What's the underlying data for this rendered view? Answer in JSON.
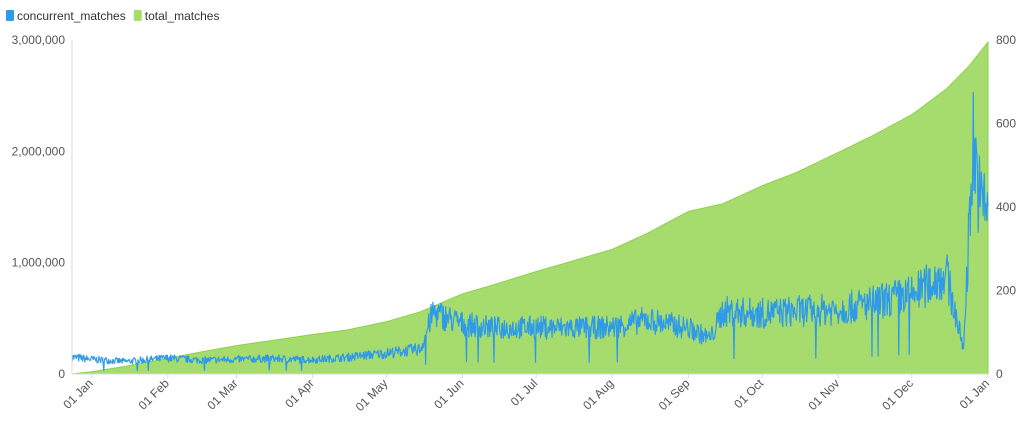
{
  "chart_data": {
    "type": "area+line",
    "title": "",
    "legend": {
      "position": "top-left",
      "entries": [
        {
          "name": "concurrent_matches",
          "color": "#2f9be8",
          "icon": "square-swatch-icon"
        },
        {
          "name": "total_matches",
          "color": "#a6dc6e",
          "icon": "square-swatch-icon"
        }
      ]
    },
    "x_axis": {
      "type": "date",
      "range": [
        "2022-12-24",
        "2024-01-01"
      ],
      "ticks": [
        {
          "label": "01 Jan",
          "date": "2023-01-01"
        },
        {
          "label": "01 Feb",
          "date": "2023-02-01"
        },
        {
          "label": "01 Mar",
          "date": "2023-03-01"
        },
        {
          "label": "01 Apr",
          "date": "2023-04-01"
        },
        {
          "label": "01 May",
          "date": "2023-05-01"
        },
        {
          "label": "01 Jun",
          "date": "2023-06-01"
        },
        {
          "label": "01 Jul",
          "date": "2023-07-01"
        },
        {
          "label": "01 Aug",
          "date": "2023-08-01"
        },
        {
          "label": "01 Sep",
          "date": "2023-09-01"
        },
        {
          "label": "01 Oct",
          "date": "2023-10-01"
        },
        {
          "label": "01 Nov",
          "date": "2023-11-01"
        },
        {
          "label": "01 Dec",
          "date": "2023-12-01"
        },
        {
          "label": "01 Jan",
          "date": "2024-01-01"
        }
      ]
    },
    "y_left": {
      "series": "total_matches",
      "range": [
        0,
        3000000
      ],
      "ticks": [
        {
          "label": "0",
          "value": 0
        },
        {
          "label": "1,000,000",
          "value": 1000000
        },
        {
          "label": "2,000,000",
          "value": 2000000
        },
        {
          "label": "3,000,000",
          "value": 3000000
        }
      ]
    },
    "y_right": {
      "series": "concurrent_matches",
      "range": [
        0,
        800
      ],
      "ticks": [
        {
          "label": "0",
          "value": 0
        },
        {
          "label": "200",
          "value": 200
        },
        {
          "label": "400",
          "value": 400
        },
        {
          "label": "600",
          "value": 600
        },
        {
          "label": "800",
          "value": 800
        }
      ]
    },
    "grid": false,
    "series": [
      {
        "name": "total_matches",
        "type": "area",
        "axis": "left",
        "color": "#a6dc6e",
        "points": [
          {
            "x": "2022-12-24",
            "y": 0
          },
          {
            "x": "2023-01-01",
            "y": 20000
          },
          {
            "x": "2023-01-15",
            "y": 70000
          },
          {
            "x": "2023-02-01",
            "y": 140000
          },
          {
            "x": "2023-02-15",
            "y": 200000
          },
          {
            "x": "2023-03-01",
            "y": 255000
          },
          {
            "x": "2023-03-15",
            "y": 300000
          },
          {
            "x": "2023-04-01",
            "y": 355000
          },
          {
            "x": "2023-04-15",
            "y": 395000
          },
          {
            "x": "2023-05-01",
            "y": 470000
          },
          {
            "x": "2023-05-15",
            "y": 560000
          },
          {
            "x": "2023-06-01",
            "y": 720000
          },
          {
            "x": "2023-06-15",
            "y": 810000
          },
          {
            "x": "2023-07-01",
            "y": 920000
          },
          {
            "x": "2023-07-15",
            "y": 1010000
          },
          {
            "x": "2023-08-01",
            "y": 1120000
          },
          {
            "x": "2023-08-15",
            "y": 1260000
          },
          {
            "x": "2023-09-01",
            "y": 1460000
          },
          {
            "x": "2023-09-15",
            "y": 1530000
          },
          {
            "x": "2023-10-01",
            "y": 1690000
          },
          {
            "x": "2023-10-15",
            "y": 1810000
          },
          {
            "x": "2023-11-01",
            "y": 1990000
          },
          {
            "x": "2023-11-15",
            "y": 2140000
          },
          {
            "x": "2023-12-01",
            "y": 2330000
          },
          {
            "x": "2023-12-15",
            "y": 2560000
          },
          {
            "x": "2023-12-24",
            "y": 2760000
          },
          {
            "x": "2024-01-01",
            "y": 2980000
          }
        ]
      },
      {
        "name": "concurrent_matches",
        "type": "line",
        "axis": "right",
        "color": "#2f9be8",
        "points": [
          {
            "x": "2022-12-24",
            "y": 40
          },
          {
            "x": "2023-01-01",
            "y": 35
          },
          {
            "x": "2023-01-15",
            "y": 30
          },
          {
            "x": "2023-02-01",
            "y": 38
          },
          {
            "x": "2023-02-15",
            "y": 33
          },
          {
            "x": "2023-03-01",
            "y": 35
          },
          {
            "x": "2023-03-15",
            "y": 37
          },
          {
            "x": "2023-04-01",
            "y": 34
          },
          {
            "x": "2023-04-15",
            "y": 40
          },
          {
            "x": "2023-05-01",
            "y": 50
          },
          {
            "x": "2023-05-15",
            "y": 60
          },
          {
            "x": "2023-05-20",
            "y": 148
          },
          {
            "x": "2023-06-01",
            "y": 120
          },
          {
            "x": "2023-06-15",
            "y": 110
          },
          {
            "x": "2023-07-01",
            "y": 112
          },
          {
            "x": "2023-07-15",
            "y": 110
          },
          {
            "x": "2023-08-01",
            "y": 112
          },
          {
            "x": "2023-08-15",
            "y": 130
          },
          {
            "x": "2023-09-01",
            "y": 110
          },
          {
            "x": "2023-09-10",
            "y": 85
          },
          {
            "x": "2023-09-15",
            "y": 150
          },
          {
            "x": "2023-10-01",
            "y": 145
          },
          {
            "x": "2023-10-15",
            "y": 150
          },
          {
            "x": "2023-11-01",
            "y": 155
          },
          {
            "x": "2023-11-15",
            "y": 170
          },
          {
            "x": "2023-12-01",
            "y": 190
          },
          {
            "x": "2023-12-15",
            "y": 240
          },
          {
            "x": "2023-12-22",
            "y": 60
          },
          {
            "x": "2023-12-26",
            "y": 560
          },
          {
            "x": "2023-12-29",
            "y": 400
          },
          {
            "x": "2024-01-01",
            "y": 420
          }
        ]
      }
    ]
  }
}
